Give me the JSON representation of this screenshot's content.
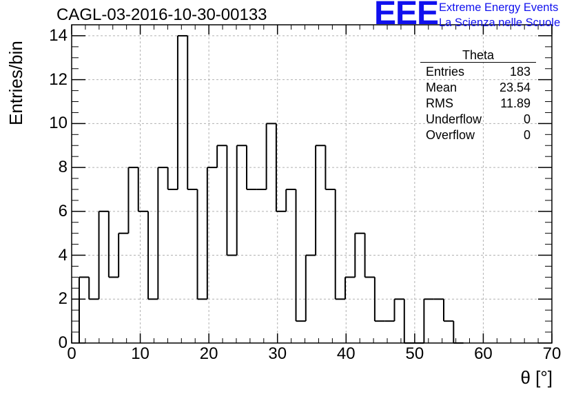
{
  "header": {
    "title": "CAGL-03-2016-10-30-00133",
    "logo_text": "EEE",
    "logo_line1": "Extreme Energy Events",
    "logo_line2": "La Scienza nelle Scuole"
  },
  "stats": {
    "title": "Theta",
    "rows": [
      {
        "label": "Entries",
        "value": "183"
      },
      {
        "label": "Mean",
        "value": "23.54"
      },
      {
        "label": "RMS",
        "value": "11.89"
      },
      {
        "label": "Underflow",
        "value": "0"
      },
      {
        "label": "Overflow",
        "value": "0"
      }
    ]
  },
  "chart_data": {
    "type": "bar",
    "style": "step-histogram",
    "title": "CAGL-03-2016-10-30-00133",
    "xlabel": "θ [°]",
    "ylabel": "Entries/bin",
    "xlim": [
      0,
      70
    ],
    "ylim": [
      0,
      14.5
    ],
    "x_ticks": [
      "0",
      "10",
      "20",
      "30",
      "40",
      "50",
      "60",
      "70"
    ],
    "y_ticks": [
      "0",
      "2",
      "4",
      "6",
      "8",
      "10",
      "12",
      "14"
    ],
    "grid": true,
    "bin_start": 1.1,
    "bin_width": 1.436,
    "values": [
      3,
      2,
      6,
      3,
      5,
      8,
      6,
      2,
      8,
      7,
      14,
      7,
      2,
      8,
      9,
      4,
      9,
      7,
      7,
      10,
      6,
      7,
      1,
      4,
      9,
      7,
      2,
      3,
      5,
      3,
      1,
      1,
      2,
      0,
      0,
      2,
      2,
      1,
      0
    ],
    "line_color": "#000000",
    "grid_color": "#b0b0b0"
  }
}
